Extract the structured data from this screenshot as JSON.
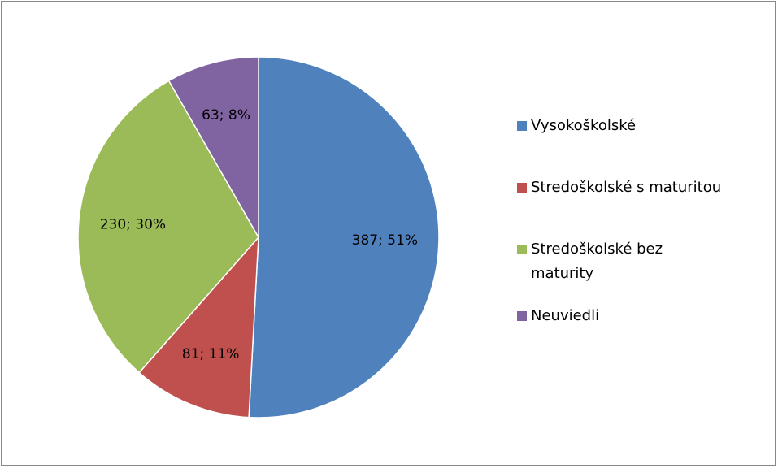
{
  "chart_data": {
    "type": "pie",
    "categories": [
      "Vysokoškolské",
      "Stredoškolské s maturitou",
      "Stredoškolské bez maturity",
      "Neuviedli"
    ],
    "values": [
      387,
      81,
      230,
      63
    ],
    "value_labels": [
      "387; 51%",
      "81; 11%",
      "230; 30%",
      "63; 8%"
    ],
    "colors": [
      "#4f81bd",
      "#c0504d",
      "#9bbb59",
      "#8064a2"
    ],
    "legend": "right"
  }
}
